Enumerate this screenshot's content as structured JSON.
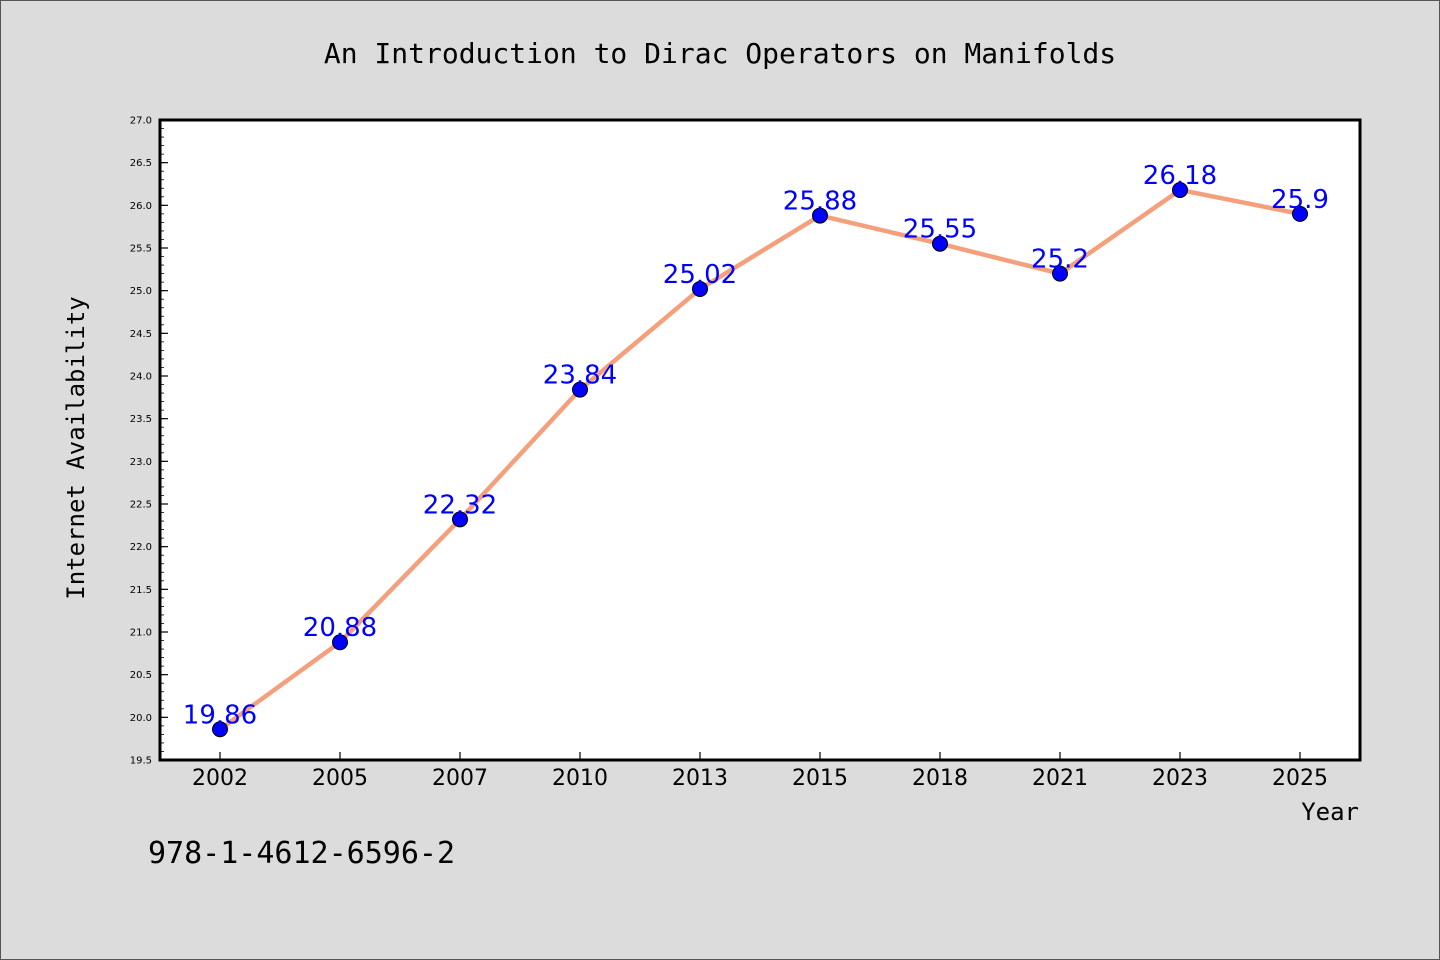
{
  "chart_data": {
    "type": "line",
    "title": "An Introduction to Dirac Operators on Manifolds",
    "xlabel": "Year",
    "ylabel": "Internet Availability",
    "categories": [
      "2002",
      "2005",
      "2007",
      "2010",
      "2013",
      "2015",
      "2018",
      "2021",
      "2023",
      "2025"
    ],
    "series": [
      {
        "values": [
          19.86,
          20.88,
          22.32,
          23.84,
          25.02,
          25.88,
          25.55,
          25.2,
          26.18,
          25.9
        ],
        "data_labels": [
          "19.86",
          "20.88",
          "22.32",
          "23.84",
          "25.02",
          "25.88",
          "25.55",
          "25.2",
          "26.18",
          "25.9"
        ]
      }
    ],
    "ylim": [
      19.5,
      27.0
    ],
    "yticks": [
      "19.5",
      "20.0",
      "20.5",
      "21.0",
      "21.5",
      "22.0",
      "22.5",
      "23.0",
      "23.5",
      "24.0",
      "24.5",
      "25.0",
      "25.5",
      "26.0",
      "26.5",
      "27.0"
    ],
    "grid": false,
    "legend": "none",
    "colors": {
      "line": "#f4a07c",
      "marker": "#0000ff",
      "data_label": "#0000ff",
      "plot_bg": "#ffffff",
      "page_bg": "#dcdcdc"
    }
  },
  "annotation": {
    "isbn": "978-1-4612-6596-2"
  }
}
